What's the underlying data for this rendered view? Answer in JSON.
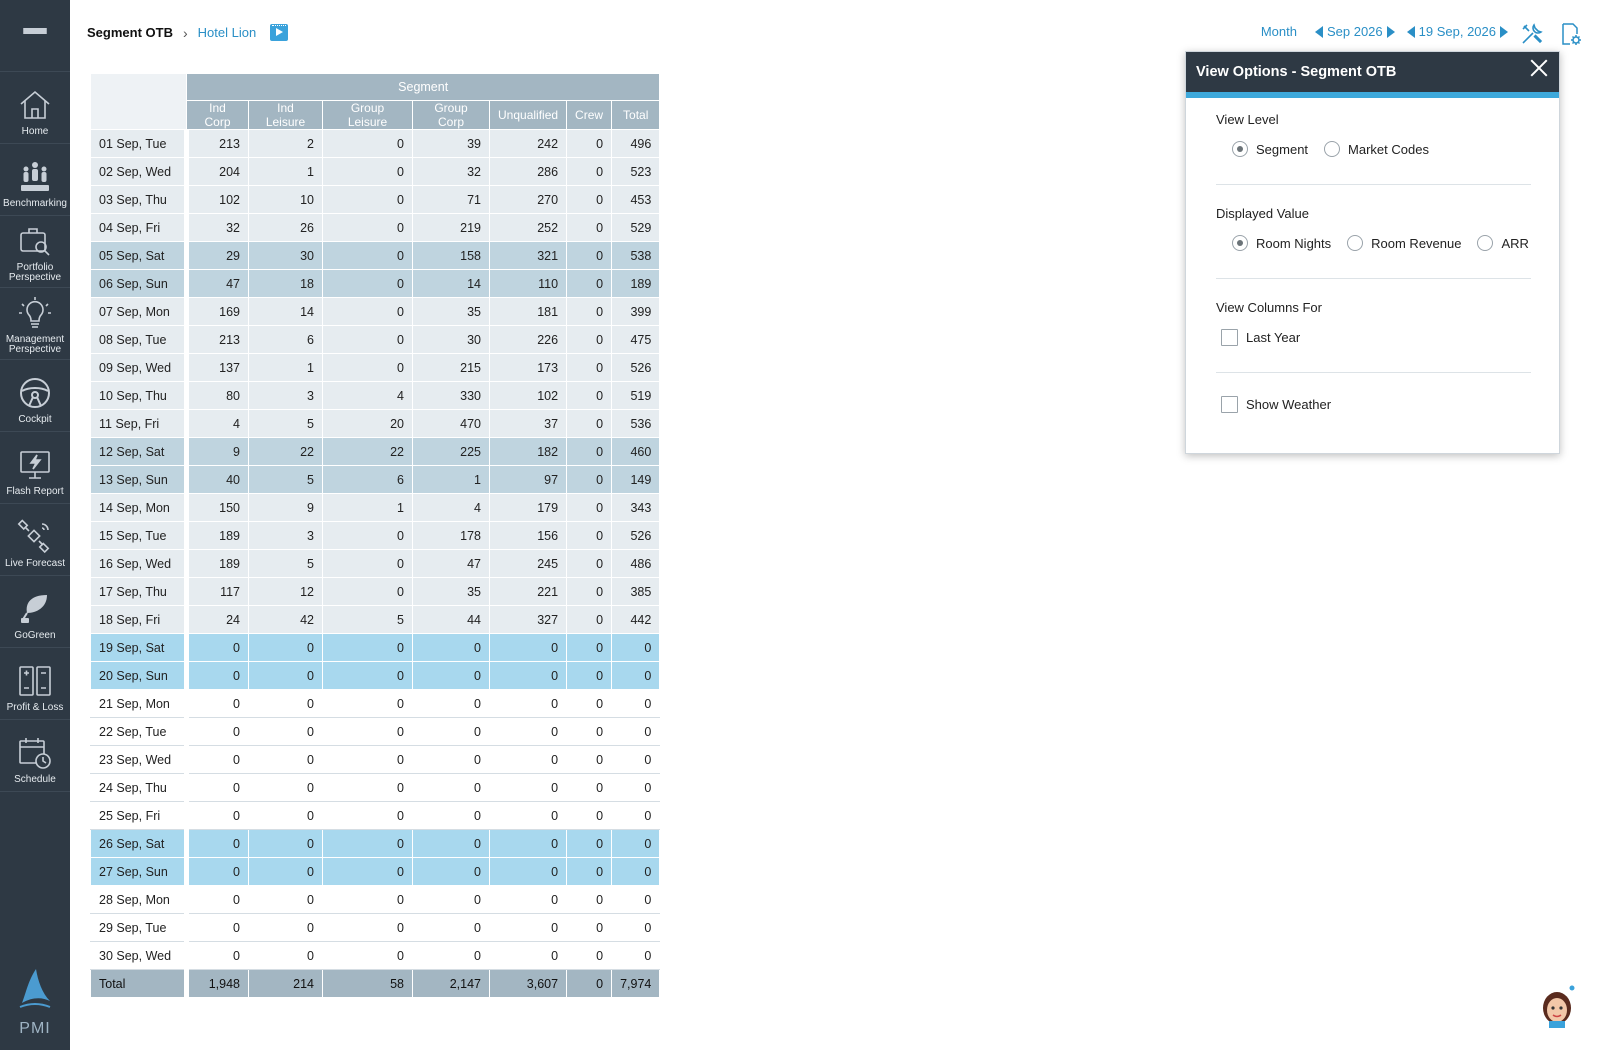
{
  "sidebar": {
    "items": [
      {
        "label": "Home",
        "icon": "home-icon"
      },
      {
        "label": "Benchmarking",
        "icon": "benchmarking-icon"
      },
      {
        "label": "Portfolio Perspective",
        "icon": "portfolio-icon"
      },
      {
        "label": "Management Perspective",
        "icon": "lightbulb-icon"
      },
      {
        "label": "Cockpit",
        "icon": "steering-wheel-icon"
      },
      {
        "label": "Flash Report",
        "icon": "flash-monitor-icon"
      },
      {
        "label": "Live Forecast",
        "icon": "satellite-icon"
      },
      {
        "label": "GoGreen",
        "icon": "leaf-plug-icon"
      },
      {
        "label": "Profit & Loss",
        "icon": "profit-loss-icon"
      },
      {
        "label": "Schedule",
        "icon": "schedule-icon"
      }
    ],
    "logo_text": "PMI"
  },
  "header": {
    "title": "Segment OTB",
    "hotel": "Hotel Lion",
    "period_mode": "Month",
    "month_label": "Sep 2026",
    "date_label": "19 Sep, 2026"
  },
  "table": {
    "group_header": "Segment",
    "columns": [
      "Ind Corp",
      "Ind Leisure",
      "Group Leisure",
      "Group Corp",
      "Unqualified",
      "Crew",
      "Total"
    ],
    "rows": [
      {
        "date": "01 Sep, Tue",
        "type": "past",
        "values": [
          "213",
          "2",
          "0",
          "39",
          "242",
          "0",
          "496"
        ]
      },
      {
        "date": "02 Sep, Wed",
        "type": "past",
        "values": [
          "204",
          "1",
          "0",
          "32",
          "286",
          "0",
          "523"
        ]
      },
      {
        "date": "03 Sep, Thu",
        "type": "past",
        "values": [
          "102",
          "10",
          "0",
          "71",
          "270",
          "0",
          "453"
        ]
      },
      {
        "date": "04 Sep, Fri",
        "type": "past",
        "values": [
          "32",
          "26",
          "0",
          "219",
          "252",
          "0",
          "529"
        ]
      },
      {
        "date": "05 Sep, Sat",
        "type": "past-we",
        "values": [
          "29",
          "30",
          "0",
          "158",
          "321",
          "0",
          "538"
        ]
      },
      {
        "date": "06 Sep, Sun",
        "type": "past-we",
        "values": [
          "47",
          "18",
          "0",
          "14",
          "110",
          "0",
          "189"
        ]
      },
      {
        "date": "07 Sep, Mon",
        "type": "past",
        "values": [
          "169",
          "14",
          "0",
          "35",
          "181",
          "0",
          "399"
        ]
      },
      {
        "date": "08 Sep, Tue",
        "type": "past",
        "values": [
          "213",
          "6",
          "0",
          "30",
          "226",
          "0",
          "475"
        ]
      },
      {
        "date": "09 Sep, Wed",
        "type": "past",
        "values": [
          "137",
          "1",
          "0",
          "215",
          "173",
          "0",
          "526"
        ]
      },
      {
        "date": "10 Sep, Thu",
        "type": "past",
        "values": [
          "80",
          "3",
          "4",
          "330",
          "102",
          "0",
          "519"
        ]
      },
      {
        "date": "11 Sep, Fri",
        "type": "past",
        "values": [
          "4",
          "5",
          "20",
          "470",
          "37",
          "0",
          "536"
        ]
      },
      {
        "date": "12 Sep, Sat",
        "type": "past-we",
        "values": [
          "9",
          "22",
          "22",
          "225",
          "182",
          "0",
          "460"
        ]
      },
      {
        "date": "13 Sep, Sun",
        "type": "past-we",
        "values": [
          "40",
          "5",
          "6",
          "1",
          "97",
          "0",
          "149"
        ]
      },
      {
        "date": "14 Sep, Mon",
        "type": "past",
        "values": [
          "150",
          "9",
          "1",
          "4",
          "179",
          "0",
          "343"
        ]
      },
      {
        "date": "15 Sep, Tue",
        "type": "past",
        "values": [
          "189",
          "3",
          "0",
          "178",
          "156",
          "0",
          "526"
        ]
      },
      {
        "date": "16 Sep, Wed",
        "type": "past",
        "values": [
          "189",
          "5",
          "0",
          "47",
          "245",
          "0",
          "486"
        ]
      },
      {
        "date": "17 Sep, Thu",
        "type": "past",
        "values": [
          "117",
          "12",
          "0",
          "35",
          "221",
          "0",
          "385"
        ]
      },
      {
        "date": "18 Sep, Fri",
        "type": "past",
        "values": [
          "24",
          "42",
          "5",
          "44",
          "327",
          "0",
          "442"
        ]
      },
      {
        "date": "19 Sep, Sat",
        "type": "cur-we",
        "values": [
          "0",
          "0",
          "0",
          "0",
          "0",
          "0",
          "0"
        ]
      },
      {
        "date": "20 Sep, Sun",
        "type": "cur-we",
        "values": [
          "0",
          "0",
          "0",
          "0",
          "0",
          "0",
          "0"
        ]
      },
      {
        "date": "21 Sep, Mon",
        "type": "future",
        "values": [
          "0",
          "0",
          "0",
          "0",
          "0",
          "0",
          "0"
        ]
      },
      {
        "date": "22 Sep, Tue",
        "type": "future",
        "values": [
          "0",
          "0",
          "0",
          "0",
          "0",
          "0",
          "0"
        ]
      },
      {
        "date": "23 Sep, Wed",
        "type": "future",
        "values": [
          "0",
          "0",
          "0",
          "0",
          "0",
          "0",
          "0"
        ]
      },
      {
        "date": "24 Sep, Thu",
        "type": "future",
        "values": [
          "0",
          "0",
          "0",
          "0",
          "0",
          "0",
          "0"
        ]
      },
      {
        "date": "25 Sep, Fri",
        "type": "future",
        "values": [
          "0",
          "0",
          "0",
          "0",
          "0",
          "0",
          "0"
        ]
      },
      {
        "date": "26 Sep, Sat",
        "type": "cur-we",
        "values": [
          "0",
          "0",
          "0",
          "0",
          "0",
          "0",
          "0"
        ]
      },
      {
        "date": "27 Sep, Sun",
        "type": "cur-we",
        "values": [
          "0",
          "0",
          "0",
          "0",
          "0",
          "0",
          "0"
        ]
      },
      {
        "date": "28 Sep, Mon",
        "type": "future",
        "values": [
          "0",
          "0",
          "0",
          "0",
          "0",
          "0",
          "0"
        ]
      },
      {
        "date": "29 Sep, Tue",
        "type": "future",
        "values": [
          "0",
          "0",
          "0",
          "0",
          "0",
          "0",
          "0"
        ]
      },
      {
        "date": "30 Sep, Wed",
        "type": "future",
        "values": [
          "0",
          "0",
          "0",
          "0",
          "0",
          "0",
          "0"
        ]
      }
    ],
    "total": {
      "label": "Total",
      "values": [
        "1,948",
        "214",
        "58",
        "2,147",
        "3,607",
        "0",
        "7,974"
      ]
    }
  },
  "view_options": {
    "title": "View Options - Segment OTB",
    "view_level": {
      "label": "View Level",
      "options": [
        "Segment",
        "Market Codes"
      ],
      "selected": "Segment"
    },
    "displayed_value": {
      "label": "Displayed Value",
      "options": [
        "Room Nights",
        "Room Revenue",
        "ARR"
      ],
      "selected": "Room Nights"
    },
    "view_columns_for": {
      "label": "View Columns For",
      "last_year": "Last Year",
      "last_year_checked": false
    },
    "show_weather": {
      "label": "Show Weather",
      "checked": false
    }
  },
  "colors": {
    "sidebar_bg": "#2e3944",
    "accent": "#2a8fc6",
    "header_gray": "#a3b6c2",
    "weekend_blue": "#a8d8ee"
  }
}
